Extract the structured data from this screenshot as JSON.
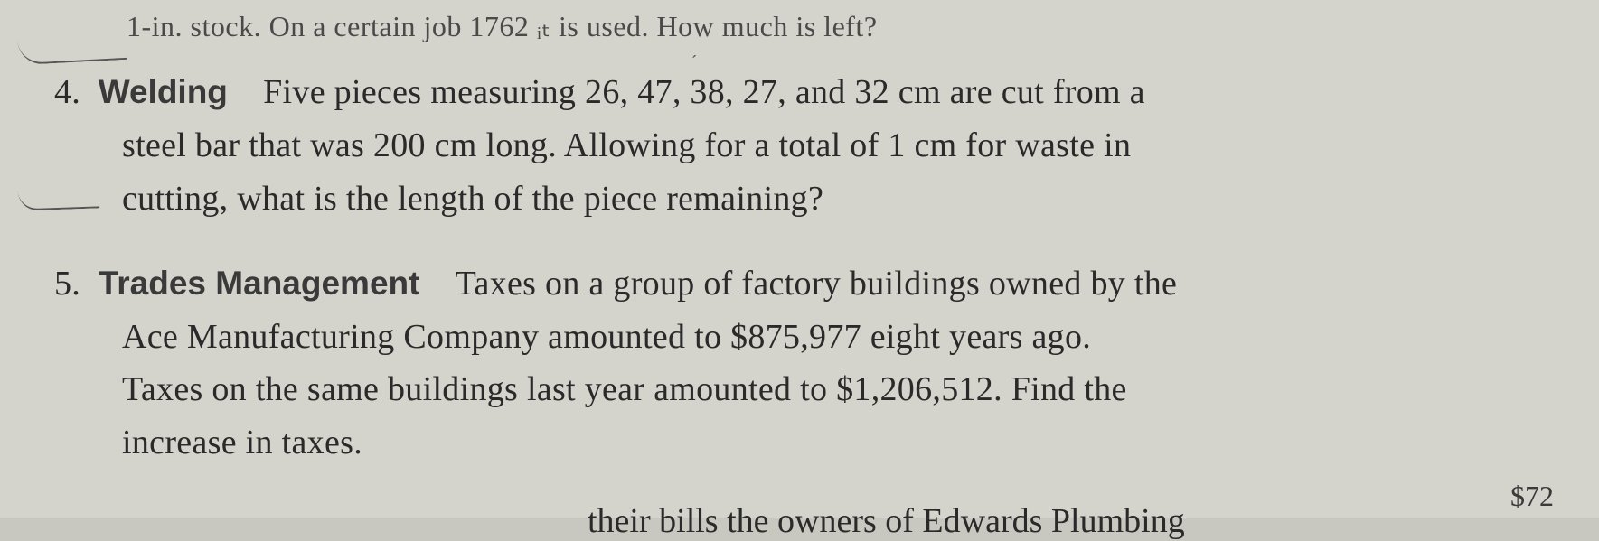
{
  "partial_top": "1-in. stock. On a certain job 1762 ᵢₜ is used. How much is left?",
  "problem4": {
    "number": "4.",
    "title": "Welding",
    "line1_rest": "Five pieces measuring 26, 47, 38, 27, and 32 cm are cut from a",
    "line2": "steel bar that was 200 cm long. Allowing for a total of 1 cm for waste in",
    "line3": "cutting, what is the length of the piece remaining?"
  },
  "problem5": {
    "number": "5.",
    "title": "Trades Management",
    "line1_rest": "Taxes on a group of factory buildings owned by the",
    "line2": "Ace Manufacturing Company amounted to $875,977 eight years ago.",
    "line3": "Taxes on the same buildings last year amounted to $1,206,512. Find the",
    "line4": "increase in taxes."
  },
  "partial_bottom": "their bills  the owners of Edwards Plumbing",
  "price_fragment": "$72",
  "colors": {
    "background": "#d4d4cc",
    "text": "#2a2a2a",
    "faded_text": "#4a4a4a"
  },
  "typography": {
    "body_fontsize": 38,
    "title_fontweight": "bold",
    "font_family": "Georgia, Times New Roman, serif",
    "title_font_family": "Arial, Helvetica, sans-serif"
  }
}
